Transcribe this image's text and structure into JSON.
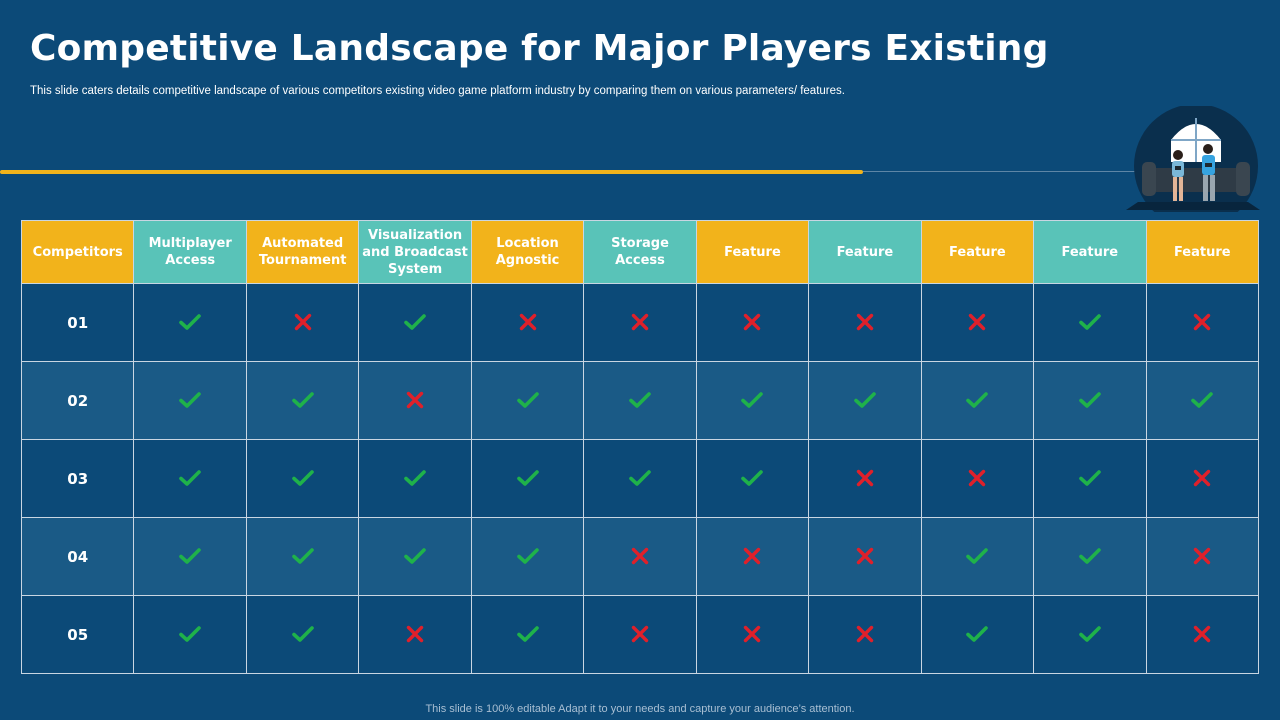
{
  "title": "Competitive Landscape for Major Players Existing",
  "subtitle": "This slide caters details competitive landscape of various competitors existing video game platform industry by comparing them on various parameters/ features.",
  "footer": "This slide is 100% editable Adapt it to your needs and capture your audience’s attention.",
  "colors": {
    "background": "#0c4a78",
    "gold": "#f2b31b",
    "teal": "#59c3b8",
    "check": "#1fb24a",
    "cross": "#e0202a"
  },
  "table": {
    "headers": [
      {
        "label": "Competitors",
        "color": "gold"
      },
      {
        "label": "Multiplayer Access",
        "color": "teal"
      },
      {
        "label": "Automated Tournament",
        "color": "gold"
      },
      {
        "label": "Visualization and Broadcast System",
        "color": "teal"
      },
      {
        "label": "Location Agnostic",
        "color": "gold"
      },
      {
        "label": "Storage Access",
        "color": "teal"
      },
      {
        "label": "Feature",
        "color": "gold"
      },
      {
        "label": "Feature",
        "color": "teal"
      },
      {
        "label": "Feature",
        "color": "gold"
      },
      {
        "label": "Feature",
        "color": "teal"
      },
      {
        "label": "Feature",
        "color": "gold"
      }
    ],
    "rows": [
      {
        "competitor": "01",
        "marks": [
          "check",
          "cross",
          "check",
          "cross",
          "cross",
          "cross",
          "cross",
          "cross",
          "check",
          "cross"
        ]
      },
      {
        "competitor": "02",
        "marks": [
          "check",
          "check",
          "cross",
          "check",
          "check",
          "check",
          "check",
          "check",
          "check",
          "check"
        ]
      },
      {
        "competitor": "03",
        "marks": [
          "check",
          "check",
          "check",
          "check",
          "check",
          "check",
          "cross",
          "cross",
          "check",
          "cross"
        ]
      },
      {
        "competitor": "04",
        "marks": [
          "check",
          "check",
          "check",
          "check",
          "cross",
          "cross",
          "cross",
          "check",
          "check",
          "cross"
        ]
      },
      {
        "competitor": "05",
        "marks": [
          "check",
          "check",
          "cross",
          "check",
          "cross",
          "cross",
          "cross",
          "check",
          "check",
          "cross"
        ]
      }
    ]
  }
}
